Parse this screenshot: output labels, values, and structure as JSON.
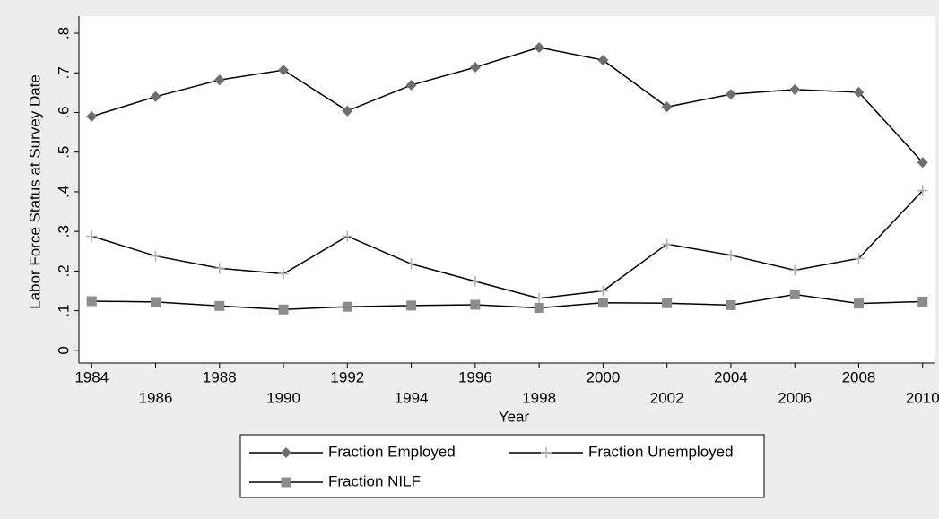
{
  "chart_data": {
    "type": "line",
    "x_label": "Year",
    "y_label": "Labor Force Status at Survey Date",
    "x": [
      1984,
      1986,
      1988,
      1990,
      1992,
      1994,
      1996,
      1998,
      2000,
      2002,
      2004,
      2006,
      2008,
      2010
    ],
    "series": [
      {
        "name": "Fraction Employed",
        "color": "#6e6e6e",
        "marker": "diamond",
        "values": [
          0.59,
          0.64,
          0.682,
          0.707,
          0.604,
          0.669,
          0.714,
          0.764,
          0.732,
          0.614,
          0.646,
          0.658,
          0.651,
          0.474
        ]
      },
      {
        "name": "Fraction Unemployed",
        "color": "#b0b0b0",
        "marker": "plus",
        "values": [
          0.288,
          0.238,
          0.207,
          0.193,
          0.288,
          0.218,
          0.174,
          0.131,
          0.15,
          0.268,
          0.24,
          0.202,
          0.232,
          0.403
        ]
      },
      {
        "name": "Fraction NILF",
        "color": "#8c8c8c",
        "marker": "square",
        "values": [
          0.124,
          0.122,
          0.112,
          0.103,
          0.11,
          0.113,
          0.115,
          0.107,
          0.12,
          0.119,
          0.114,
          0.141,
          0.118,
          0.123
        ]
      }
    ],
    "xlim": [
      1983.6,
      2010.4
    ],
    "xticks": [
      1984,
      1986,
      1988,
      1990,
      1992,
      1994,
      1996,
      1998,
      2000,
      2002,
      2004,
      2006,
      2008,
      2010
    ],
    "ylim": [
      -0.032,
      0.843
    ],
    "yticks": [
      0,
      {
        "value": 0.1,
        "label": ".1"
      },
      {
        "value": 0.2,
        "label": ".2"
      },
      {
        "value": 0.3,
        "label": ".3"
      },
      {
        "value": 0.4,
        "label": ".4"
      },
      {
        "value": 0.5,
        "label": ".5"
      },
      {
        "value": 0.6,
        "label": ".6"
      },
      {
        "value": 0.7,
        "label": ".7"
      },
      {
        "value": 0.8,
        "label": ".8"
      }
    ],
    "line_color": "#000000",
    "legend": "bottom"
  }
}
